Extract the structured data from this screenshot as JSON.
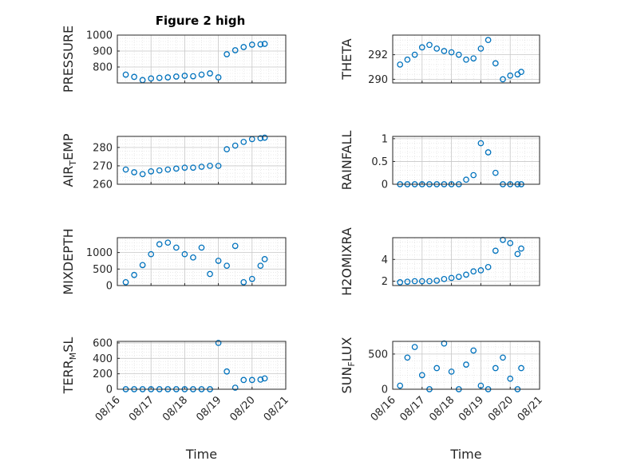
{
  "figure": {
    "title": "Figure 2 high"
  },
  "chart_data": [
    {
      "type": "scatter",
      "title": "Figure 2 high",
      "ylabel": "PRESSURE",
      "xlabel": "",
      "xlim": [
        "08/16",
        "08/21"
      ],
      "ylim": [
        700,
        1000
      ],
      "yticks": [
        800,
        900,
        1000
      ],
      "xticks": [
        "08/16",
        "08/17",
        "08/18",
        "08/19",
        "08/20",
        "08/21"
      ],
      "grid": true,
      "color": "#0072BD",
      "x": [
        "08/16 06:00",
        "08/16 12:00",
        "08/16 18:00",
        "08/17 00:00",
        "08/17 06:00",
        "08/17 12:00",
        "08/17 18:00",
        "08/18 00:00",
        "08/18 06:00",
        "08/18 12:00",
        "08/18 18:00",
        "08/19 00:00",
        "08/19 06:00",
        "08/19 12:00",
        "08/19 18:00",
        "08/20 00:00",
        "08/20 06:00",
        "08/20 09:00"
      ],
      "y": [
        752,
        738,
        718,
        728,
        732,
        735,
        740,
        745,
        742,
        752,
        760,
        735,
        880,
        905,
        925,
        940,
        942,
        945
      ]
    },
    {
      "type": "scatter",
      "title": "",
      "ylabel": "THETA",
      "xlabel": "",
      "xlim": [
        "08/16",
        "08/21"
      ],
      "ylim": [
        289.7,
        293.6
      ],
      "yticks": [
        290,
        292
      ],
      "xticks": [
        "08/16",
        "08/17",
        "08/18",
        "08/19",
        "08/20",
        "08/21"
      ],
      "grid": true,
      "color": "#0072BD",
      "x": [
        "08/16 06:00",
        "08/16 12:00",
        "08/16 18:00",
        "08/17 00:00",
        "08/17 06:00",
        "08/17 12:00",
        "08/17 18:00",
        "08/18 00:00",
        "08/18 06:00",
        "08/18 12:00",
        "08/18 18:00",
        "08/19 00:00",
        "08/19 06:00",
        "08/19 12:00",
        "08/19 18:00",
        "08/20 00:00",
        "08/20 06:00",
        "08/20 09:00"
      ],
      "y": [
        291.2,
        291.6,
        292.0,
        292.6,
        292.8,
        292.5,
        292.3,
        292.2,
        292.0,
        291.6,
        291.7,
        292.5,
        293.2,
        291.3,
        290.0,
        290.3,
        290.4,
        290.6
      ]
    },
    {
      "type": "scatter",
      "title": "",
      "ylabel": "AIR_TEMP",
      "xlabel": "",
      "xlim": [
        "08/16",
        "08/21"
      ],
      "ylim": [
        260,
        286
      ],
      "yticks": [
        260,
        270,
        280
      ],
      "xticks": [
        "08/16",
        "08/17",
        "08/18",
        "08/19",
        "08/20",
        "08/21"
      ],
      "grid": true,
      "color": "#0072BD",
      "x": [
        "08/16 06:00",
        "08/16 12:00",
        "08/16 18:00",
        "08/17 00:00",
        "08/17 06:00",
        "08/17 12:00",
        "08/17 18:00",
        "08/18 00:00",
        "08/18 06:00",
        "08/18 12:00",
        "08/18 18:00",
        "08/19 00:00",
        "08/19 06:00",
        "08/19 12:00",
        "08/19 18:00",
        "08/20 00:00",
        "08/20 06:00",
        "08/20 09:00"
      ],
      "y": [
        268,
        266.5,
        265.5,
        267,
        267.5,
        268,
        268.5,
        269,
        269,
        269.5,
        270,
        270,
        279,
        281,
        283,
        284.5,
        285,
        285.3
      ]
    },
    {
      "type": "scatter",
      "title": "",
      "ylabel": "RAINFALL",
      "xlabel": "",
      "xlim": [
        "08/16",
        "08/21"
      ],
      "ylim": [
        0,
        1.05
      ],
      "yticks": [
        0,
        0.5,
        1
      ],
      "xticks": [
        "08/16",
        "08/17",
        "08/18",
        "08/19",
        "08/20",
        "08/21"
      ],
      "grid": true,
      "color": "#0072BD",
      "x": [
        "08/16 06:00",
        "08/16 12:00",
        "08/16 18:00",
        "08/17 00:00",
        "08/17 06:00",
        "08/17 12:00",
        "08/17 18:00",
        "08/18 00:00",
        "08/18 06:00",
        "08/18 12:00",
        "08/18 18:00",
        "08/19 00:00",
        "08/19 06:00",
        "08/19 12:00",
        "08/19 18:00",
        "08/20 00:00",
        "08/20 06:00",
        "08/20 09:00"
      ],
      "y": [
        0,
        0,
        0,
        0,
        0,
        0,
        0,
        0,
        0,
        0.1,
        0.2,
        0.9,
        0.7,
        0.25,
        0,
        0,
        0,
        0
      ]
    },
    {
      "type": "scatter",
      "title": "",
      "ylabel": "MIXDEPTH",
      "xlabel": "",
      "xlim": [
        "08/16",
        "08/21"
      ],
      "ylim": [
        0,
        1450
      ],
      "yticks": [
        0,
        500,
        1000
      ],
      "xticks": [
        "08/16",
        "08/17",
        "08/18",
        "08/19",
        "08/20",
        "08/21"
      ],
      "grid": true,
      "color": "#0072BD",
      "x": [
        "08/16 06:00",
        "08/16 12:00",
        "08/16 18:00",
        "08/17 00:00",
        "08/17 06:00",
        "08/17 12:00",
        "08/17 18:00",
        "08/18 00:00",
        "08/18 06:00",
        "08/18 12:00",
        "08/18 18:00",
        "08/19 00:00",
        "08/19 06:00",
        "08/19 12:00",
        "08/19 18:00",
        "08/20 00:00",
        "08/20 06:00",
        "08/20 09:00"
      ],
      "y": [
        100,
        320,
        620,
        950,
        1250,
        1300,
        1150,
        950,
        850,
        1150,
        350,
        750,
        600,
        1200,
        100,
        200,
        600,
        800
      ]
    },
    {
      "type": "scatter",
      "title": "",
      "ylabel": "H2OMIXRA",
      "xlabel": "",
      "xlim": [
        "08/16",
        "08/21"
      ],
      "ylim": [
        1.6,
        6.0
      ],
      "yticks": [
        2,
        4
      ],
      "xticks": [
        "08/16",
        "08/17",
        "08/18",
        "08/19",
        "08/20",
        "08/21"
      ],
      "grid": true,
      "color": "#0072BD",
      "x": [
        "08/16 06:00",
        "08/16 12:00",
        "08/16 18:00",
        "08/17 00:00",
        "08/17 06:00",
        "08/17 12:00",
        "08/17 18:00",
        "08/18 00:00",
        "08/18 06:00",
        "08/18 12:00",
        "08/18 18:00",
        "08/19 00:00",
        "08/19 06:00",
        "08/19 12:00",
        "08/19 18:00",
        "08/20 00:00",
        "08/20 06:00",
        "08/20 09:00"
      ],
      "y": [
        1.9,
        1.95,
        2.0,
        2.0,
        2.0,
        2.05,
        2.2,
        2.3,
        2.4,
        2.6,
        2.9,
        3.0,
        3.3,
        4.8,
        5.8,
        5.5,
        4.5,
        5.0
      ]
    },
    {
      "type": "scatter",
      "title": "",
      "ylabel": "TERR_MSL",
      "xlabel": "Time",
      "xlim": [
        "08/16",
        "08/21"
      ],
      "ylim": [
        0,
        620
      ],
      "yticks": [
        0,
        200,
        400,
        600
      ],
      "xticks": [
        "08/16",
        "08/17",
        "08/18",
        "08/19",
        "08/20",
        "08/21"
      ],
      "grid": true,
      "color": "#0072BD",
      "x": [
        "08/16 06:00",
        "08/16 12:00",
        "08/16 18:00",
        "08/17 00:00",
        "08/17 06:00",
        "08/17 12:00",
        "08/17 18:00",
        "08/18 00:00",
        "08/18 06:00",
        "08/18 12:00",
        "08/18 18:00",
        "08/19 00:00",
        "08/19 06:00",
        "08/19 12:00",
        "08/19 18:00",
        "08/20 00:00",
        "08/20 06:00",
        "08/20 09:00"
      ],
      "y": [
        0,
        0,
        0,
        0,
        0,
        0,
        0,
        0,
        0,
        0,
        0,
        600,
        230,
        20,
        120,
        120,
        125,
        140
      ]
    },
    {
      "type": "scatter",
      "title": "",
      "ylabel": "SUN_FLUX",
      "xlabel": "Time",
      "xlim": [
        "08/16",
        "08/21"
      ],
      "ylim": [
        0,
        680
      ],
      "yticks": [
        0,
        500
      ],
      "xticks": [
        "08/16",
        "08/17",
        "08/18",
        "08/19",
        "08/20",
        "08/21"
      ],
      "grid": true,
      "color": "#0072BD",
      "x": [
        "08/16 06:00",
        "08/16 12:00",
        "08/16 18:00",
        "08/17 00:00",
        "08/17 06:00",
        "08/17 12:00",
        "08/17 18:00",
        "08/18 00:00",
        "08/18 06:00",
        "08/18 12:00",
        "08/18 18:00",
        "08/19 00:00",
        "08/19 06:00",
        "08/19 12:00",
        "08/19 18:00",
        "08/20 00:00",
        "08/20 06:00",
        "08/20 09:00"
      ],
      "y": [
        50,
        450,
        600,
        200,
        0,
        300,
        650,
        250,
        0,
        350,
        550,
        50,
        0,
        300,
        450,
        150,
        0,
        300
      ]
    }
  ]
}
